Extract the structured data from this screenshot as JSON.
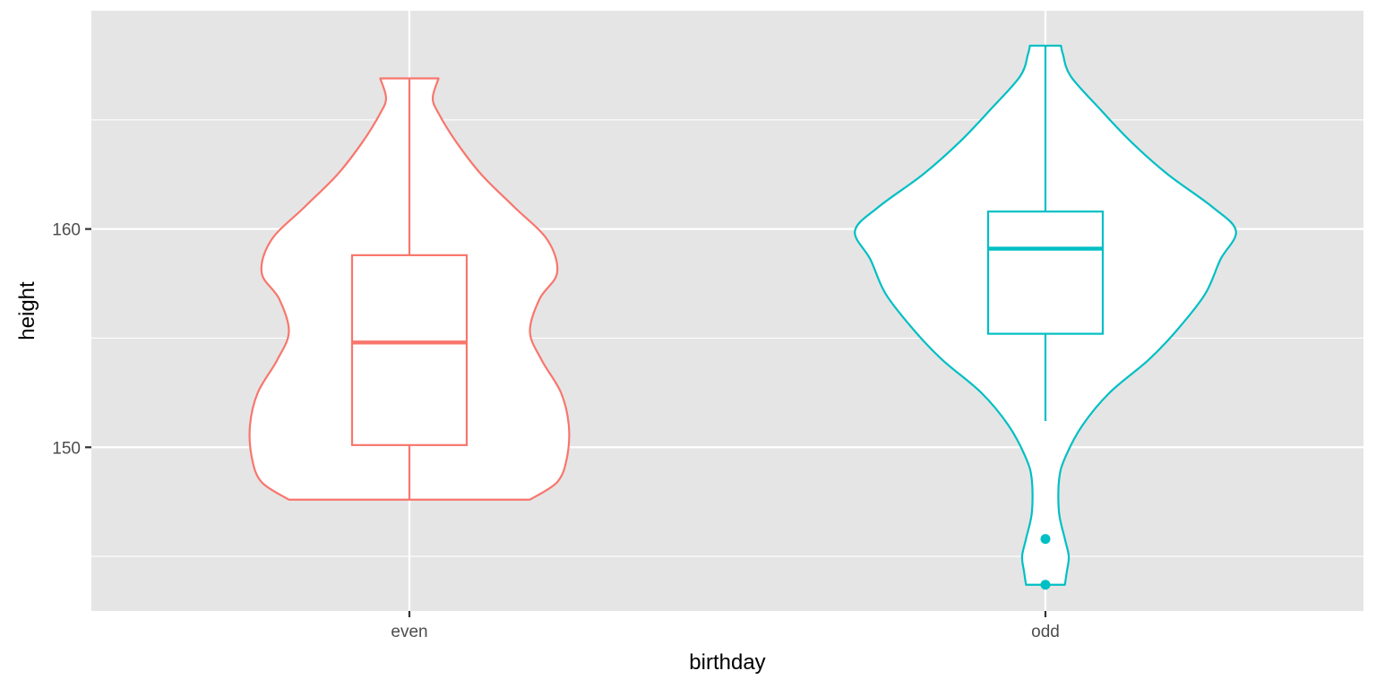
{
  "chart_data": {
    "type": "violin",
    "title": "",
    "xlabel": "birthday",
    "ylabel": "height",
    "categories": [
      "even",
      "odd"
    ],
    "y_ticks": [
      150,
      160
    ],
    "y_minor_ticks": [
      145,
      155,
      165
    ],
    "ylim": [
      142.5,
      170
    ],
    "grid": true,
    "legend": "none",
    "background": "#e5e5e5",
    "gridline_color": "#ffffff",
    "series": [
      {
        "category": "even",
        "color": "#f8766d",
        "box": {
          "lower_whisker": 147.6,
          "q1": 150.1,
          "median": 154.8,
          "q3": 158.8,
          "upper_whisker": 166.9
        },
        "outliers": [],
        "density": [
          [
            147.6,
            0.62
          ],
          [
            148.4,
            0.76
          ],
          [
            149.5,
            0.81
          ],
          [
            151.0,
            0.82
          ],
          [
            152.5,
            0.78
          ],
          [
            154.0,
            0.68
          ],
          [
            155.3,
            0.62
          ],
          [
            156.8,
            0.67
          ],
          [
            158.0,
            0.76
          ],
          [
            159.5,
            0.71
          ],
          [
            161.0,
            0.54
          ],
          [
            162.5,
            0.37
          ],
          [
            164.0,
            0.24
          ],
          [
            165.3,
            0.15
          ],
          [
            166.0,
            0.12
          ],
          [
            166.9,
            0.15
          ]
        ]
      },
      {
        "category": "odd",
        "color": "#00bfc4",
        "box": {
          "lower_whisker": 151.2,
          "q1": 155.2,
          "median": 159.1,
          "q3": 160.8,
          "upper_whisker": 168.4
        },
        "outliers": [
          145.8,
          143.7
        ],
        "density": [
          [
            143.7,
            0.1
          ],
          [
            144.3,
            0.11
          ],
          [
            145.0,
            0.12
          ],
          [
            145.8,
            0.1
          ],
          [
            147.0,
            0.07
          ],
          [
            148.5,
            0.07
          ],
          [
            149.5,
            0.1
          ],
          [
            151.0,
            0.19
          ],
          [
            152.5,
            0.33
          ],
          [
            154.0,
            0.53
          ],
          [
            155.3,
            0.67
          ],
          [
            157.0,
            0.82
          ],
          [
            158.6,
            0.9
          ],
          [
            159.9,
            0.98
          ],
          [
            161.0,
            0.86
          ],
          [
            162.5,
            0.63
          ],
          [
            164.0,
            0.44
          ],
          [
            165.5,
            0.28
          ],
          [
            167.0,
            0.13
          ],
          [
            168.0,
            0.09
          ],
          [
            168.4,
            0.08
          ]
        ]
      }
    ]
  }
}
